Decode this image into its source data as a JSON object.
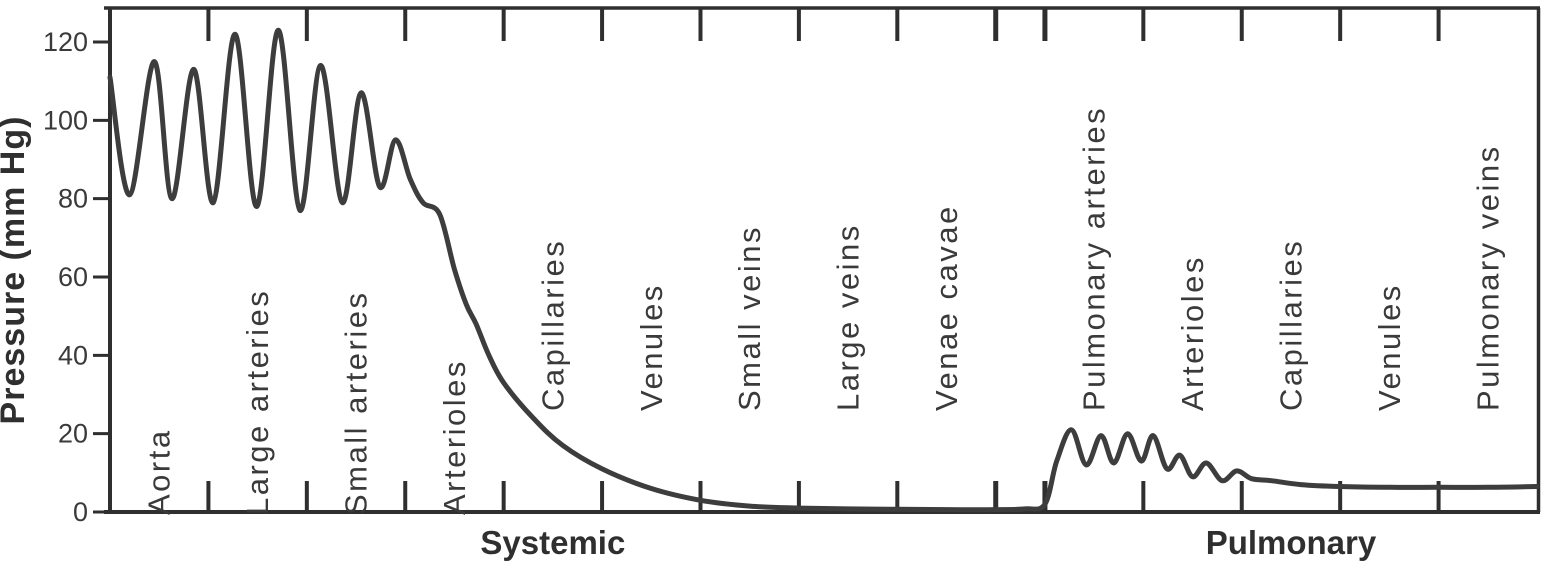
{
  "figure": {
    "background": "#ffffff",
    "frame_color": "#2f2f2f"
  },
  "chart_data": {
    "type": "line",
    "title": "",
    "xlabel": "",
    "ylabel": "Pressure (mm Hg)",
    "ylim": [
      0,
      128
    ],
    "yticks": [
      0,
      20,
      40,
      60,
      80,
      100,
      120
    ],
    "grid": false,
    "legend": false,
    "line_color": "#3d3d3d",
    "text_color": "#3a3a3a",
    "x_units": "vessel-segment index; each labeled segment is 1 unit wide; 0.5-unit gap separates the systemic and pulmonary circuits",
    "x_range": [
      0,
      14.5
    ],
    "sections": [
      {
        "label": "Systemic",
        "start_u": 0,
        "segments": [
          {
            "label": "Aorta",
            "raised": false
          },
          {
            "label": "Large arteries",
            "raised": false
          },
          {
            "label": "Small arteries",
            "raised": false
          },
          {
            "label": "Arterioles",
            "raised": false
          },
          {
            "label": "Capillaries",
            "raised": true
          },
          {
            "label": "Venules",
            "raised": true
          },
          {
            "label": "Small veins",
            "raised": true
          },
          {
            "label": "Large veins",
            "raised": true
          },
          {
            "label": "Venae cavae",
            "raised": true
          }
        ]
      },
      {
        "label": "Pulmonary",
        "start_u": 9.5,
        "segments": [
          {
            "label": "Pulmonary arteries",
            "raised": true
          },
          {
            "label": "Arterioles",
            "raised": true
          },
          {
            "label": "Capillaries",
            "raised": true
          },
          {
            "label": "Venules",
            "raised": true
          },
          {
            "label": "Pulmonary veins",
            "raised": true
          }
        ]
      }
    ],
    "pressure_curve_mmHg": [
      [
        0,
        111
      ],
      [
        0.2,
        81
      ],
      [
        0.45,
        115
      ],
      [
        0.63,
        80
      ],
      [
        0.85,
        113
      ],
      [
        1.05,
        79
      ],
      [
        1.27,
        122
      ],
      [
        1.49,
        78
      ],
      [
        1.71,
        123
      ],
      [
        1.93,
        77
      ],
      [
        2.14,
        114
      ],
      [
        2.36,
        79
      ],
      [
        2.55,
        107
      ],
      [
        2.74,
        83
      ],
      [
        2.9,
        95
      ],
      [
        3.05,
        85
      ],
      [
        3.18,
        79
      ],
      [
        3.35,
        76
      ],
      [
        3.5,
        62
      ],
      [
        3.62,
        53
      ],
      [
        3.72,
        48
      ],
      [
        3.85,
        40
      ],
      [
        4,
        33
      ],
      [
        4.3,
        24
      ],
      [
        4.6,
        17
      ],
      [
        5,
        11
      ],
      [
        5.5,
        6
      ],
      [
        6,
        3
      ],
      [
        6.5,
        1.5
      ],
      [
        7,
        1
      ],
      [
        7.5,
        0.8
      ],
      [
        8,
        0.7
      ],
      [
        8.5,
        0.6
      ],
      [
        9,
        0.6
      ],
      [
        9.3,
        0.8
      ],
      [
        9.5,
        2
      ],
      [
        9.62,
        13
      ],
      [
        9.77,
        21
      ],
      [
        9.92,
        12
      ],
      [
        10.07,
        19.5
      ],
      [
        10.2,
        12.5
      ],
      [
        10.34,
        20
      ],
      [
        10.48,
        13
      ],
      [
        10.6,
        19.5
      ],
      [
        10.74,
        11
      ],
      [
        10.87,
        14.5
      ],
      [
        11,
        9
      ],
      [
        11.14,
        12.5
      ],
      [
        11.3,
        8
      ],
      [
        11.45,
        10.5
      ],
      [
        11.6,
        8.5
      ],
      [
        11.8,
        8
      ],
      [
        12.1,
        7
      ],
      [
        12.5,
        6.5
      ],
      [
        13,
        6.3
      ],
      [
        13.5,
        6.3
      ],
      [
        14,
        6.3
      ],
      [
        14.5,
        6.5
      ]
    ]
  }
}
